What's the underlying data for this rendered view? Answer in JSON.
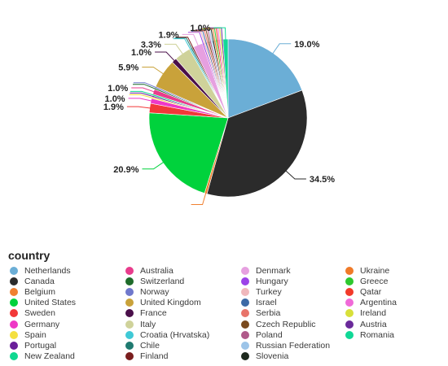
{
  "chart_data": {
    "type": "pie",
    "legend_title": "country",
    "legend_placement": "bottom",
    "series": [
      {
        "name": "Netherlands",
        "value": 19.0,
        "color": "#6baed6",
        "label": "19.0%"
      },
      {
        "name": "Canada",
        "value": 34.5,
        "color": "#2b2b2b",
        "label": "34.5%"
      },
      {
        "name": "Belgium",
        "value": 0.5,
        "color": "#f08030",
        "label": ""
      },
      {
        "name": "United States",
        "value": 20.9,
        "color": "#00d23c",
        "label": "20.9%"
      },
      {
        "name": "Sweden",
        "value": 1.9,
        "color": "#f23838",
        "label": "1.9%"
      },
      {
        "name": "Germany",
        "value": 1.0,
        "color": "#ee38c6",
        "label": "1.0%"
      },
      {
        "name": "Spain",
        "value": 0.3,
        "color": "#f4e040",
        "label": ""
      },
      {
        "name": "Portugal",
        "value": 0.3,
        "color": "#6a1f9a",
        "label": ""
      },
      {
        "name": "New Zealand",
        "value": 0.3,
        "color": "#10d890",
        "label": ""
      },
      {
        "name": "Australia",
        "value": 1.0,
        "color": "#e83c8c",
        "label": "1.0%"
      },
      {
        "name": "Switzerland",
        "value": 0.3,
        "color": "#1e6b2a",
        "label": ""
      },
      {
        "name": "Norway",
        "value": 0.3,
        "color": "#6f78cc",
        "label": ""
      },
      {
        "name": "United Kingdom",
        "value": 5.9,
        "color": "#c9a23a",
        "label": "5.9%"
      },
      {
        "name": "France",
        "value": 1.0,
        "color": "#4a0f4a",
        "label": "1.0%"
      },
      {
        "name": "Italy",
        "value": 3.3,
        "color": "#cfd29a",
        "label": "3.3%"
      },
      {
        "name": "Croatia (Hrvatska)",
        "value": 0.3,
        "color": "#3fc9d6",
        "label": ""
      },
      {
        "name": "Chile",
        "value": 0.3,
        "color": "#1f7a70",
        "label": ""
      },
      {
        "name": "Finland",
        "value": 0.3,
        "color": "#7a1e1e",
        "label": ""
      },
      {
        "name": "Denmark",
        "value": 1.9,
        "color": "#e6a0e0",
        "label": "1.9%"
      },
      {
        "name": "Hungary",
        "value": 0.3,
        "color": "#9c42e8",
        "label": ""
      },
      {
        "name": "Turkey",
        "value": 0.3,
        "color": "#f0b8bc",
        "label": ""
      },
      {
        "name": "Israel",
        "value": 0.3,
        "color": "#3d6aa6",
        "label": ""
      },
      {
        "name": "Serbia",
        "value": 0.3,
        "color": "#e8746a",
        "label": ""
      },
      {
        "name": "Czech Republic",
        "value": 0.3,
        "color": "#7a4a1e",
        "label": ""
      },
      {
        "name": "Poland",
        "value": 0.3,
        "color": "#b05a8a",
        "label": ""
      },
      {
        "name": "Russian Federation",
        "value": 0.3,
        "color": "#9cc4e8",
        "label": ""
      },
      {
        "name": "Slovenia",
        "value": 0.3,
        "color": "#1e2a1e",
        "label": ""
      },
      {
        "name": "Ukraine",
        "value": 0.3,
        "color": "#f07a28",
        "label": ""
      },
      {
        "name": "Greece",
        "value": 0.3,
        "color": "#2ec82e",
        "label": ""
      },
      {
        "name": "Qatar",
        "value": 0.3,
        "color": "#f23a2a",
        "label": ""
      },
      {
        "name": "Argentina",
        "value": 0.3,
        "color": "#f06ad8",
        "label": ""
      },
      {
        "name": "Ireland",
        "value": 0.3,
        "color": "#d8e03a",
        "label": ""
      },
      {
        "name": "Austria",
        "value": 0.3,
        "color": "#6a2a9a",
        "label": ""
      },
      {
        "name": "Romania",
        "value": 1.0,
        "color": "#10d896",
        "label": "1.0%"
      }
    ]
  }
}
